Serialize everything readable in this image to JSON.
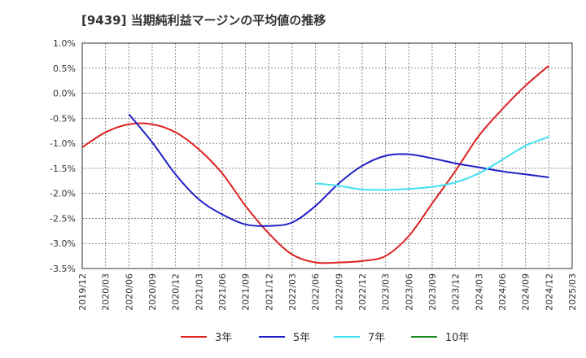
{
  "chart_data": {
    "type": "line",
    "title": "[9439]  当期純利益マージンの平均値の推移",
    "xlabel": "",
    "ylabel": "",
    "x": [
      "2019/12",
      "2020/03",
      "2020/06",
      "2020/09",
      "2020/12",
      "2021/03",
      "2021/06",
      "2021/09",
      "2021/12",
      "2022/03",
      "2022/06",
      "2022/09",
      "2022/12",
      "2023/03",
      "2023/06",
      "2023/09",
      "2023/12",
      "2024/03",
      "2024/06",
      "2024/09",
      "2024/12",
      "2025/03"
    ],
    "ylim": [
      -3.5,
      1.0
    ],
    "yticks": [
      1.0,
      0.5,
      0.0,
      -0.5,
      -1.0,
      -1.5,
      -2.0,
      -2.5,
      -3.0,
      -3.5
    ],
    "ytick_labels": [
      "1.0%",
      "0.5%",
      "0.0%",
      "-0.5%",
      "-1.0%",
      "-1.5%",
      "-2.0%",
      "-2.5%",
      "-3.0%",
      "-3.5%"
    ],
    "grid": true,
    "legend_position": "bottom",
    "series": [
      {
        "name": "3年",
        "color": "#dd2222",
        "values": [
          -1.08,
          -0.78,
          -0.62,
          -0.62,
          -0.78,
          -1.12,
          -1.6,
          -2.25,
          -2.8,
          -3.22,
          -3.38,
          -3.38,
          -3.35,
          -3.25,
          -2.85,
          -2.2,
          -1.55,
          -0.85,
          -0.32,
          0.15,
          0.55,
          null
        ]
      },
      {
        "name": "5年",
        "color": "#1f1fc8",
        "values": [
          null,
          null,
          -0.42,
          -0.98,
          -1.62,
          -2.12,
          -2.42,
          -2.62,
          -2.65,
          -2.58,
          -2.25,
          -1.8,
          -1.45,
          -1.25,
          -1.22,
          -1.3,
          -1.4,
          -1.48,
          -1.56,
          -1.62,
          -1.68,
          null
        ]
      },
      {
        "name": "7年",
        "color": "#40e0f0",
        "values": [
          null,
          null,
          null,
          null,
          null,
          null,
          null,
          null,
          null,
          null,
          -1.8,
          -1.85,
          -1.92,
          -1.93,
          -1.91,
          -1.87,
          -1.78,
          -1.6,
          -1.33,
          -1.05,
          -0.87,
          null
        ]
      },
      {
        "name": "10年",
        "color": "#1f8a1f",
        "values": [
          null,
          null,
          null,
          null,
          null,
          null,
          null,
          null,
          null,
          null,
          null,
          null,
          null,
          null,
          null,
          null,
          null,
          null,
          null,
          null,
          null,
          null
        ]
      }
    ]
  }
}
